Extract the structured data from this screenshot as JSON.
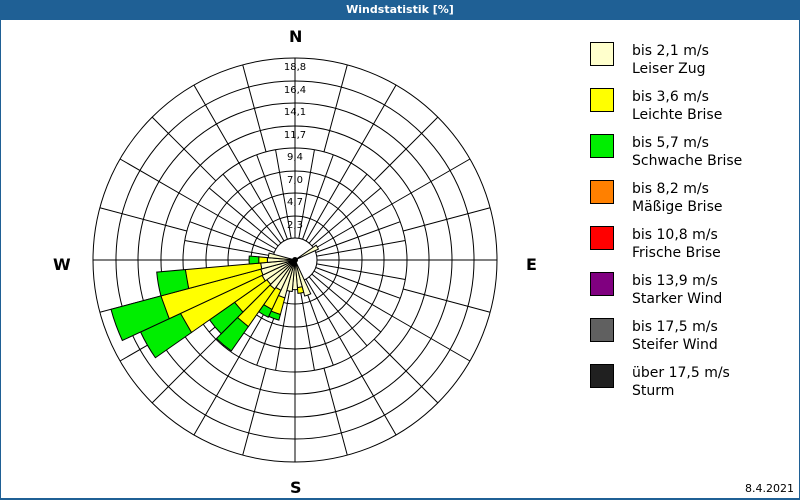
{
  "window": {
    "title": "Windstatistik [%]",
    "date": "8.4.2021"
  },
  "compass": {
    "north": "N",
    "south": "S",
    "east": "E",
    "west": "W"
  },
  "rings": [
    "2,3",
    "4,7",
    "7,0",
    "9,4",
    "11,7",
    "14,1",
    "16,4",
    "18,8"
  ],
  "legend": [
    {
      "range": "bis 2,1 m/s",
      "name": "Leiser Zug",
      "color": "#ffffcc"
    },
    {
      "range": "bis 3,6 m/s",
      "name": "Leichte Brise",
      "color": "#ffff00"
    },
    {
      "range": "bis 5,7 m/s",
      "name": "Schwache Brise",
      "color": "#00ee00"
    },
    {
      "range": "bis 8,2 m/s",
      "name": "Mäßige Brise",
      "color": "#ff8000"
    },
    {
      "range": "bis 10,8 m/s",
      "name": "Frische Brise",
      "color": "#ff0000"
    },
    {
      "range": "bis 13,9 m/s",
      "name": "Starker Wind",
      "color": "#800080"
    },
    {
      "range": "bis 17,5 m/s",
      "name": "Steifer Wind",
      "color": "#606060"
    },
    {
      "range": "über 17,5 m/s",
      "name": "Sturm",
      "color": "#202020"
    }
  ],
  "chart_data": {
    "type": "windrose",
    "title": "Windstatistik [%]",
    "unit": "%",
    "radial_ticks": [
      2.3,
      4.7,
      7.0,
      9.4,
      11.7,
      14.1,
      16.4,
      18.8
    ],
    "rmax": 18.8,
    "sector_width_deg": 10,
    "speed_classes": [
      "bis 2,1 m/s",
      "bis 3,6 m/s",
      "bis 5,7 m/s",
      "bis 8,2 m/s",
      "bis 10,8 m/s",
      "bis 13,9 m/s",
      "bis 17,5 m/s",
      "über 17,5 m/s"
    ],
    "sectors": [
      {
        "dir_deg": 160,
        "cumulative": [
          1.6
        ]
      },
      {
        "dir_deg": 170,
        "cumulative": [
          0.6,
          1.2
        ]
      },
      {
        "dir_deg": 180,
        "cumulative": [
          0.8
        ]
      },
      {
        "dir_deg": 190,
        "cumulative": [
          1.0
        ]
      },
      {
        "dir_deg": 200,
        "cumulative": [
          1.8,
          3.6,
          4.2
        ]
      },
      {
        "dir_deg": 210,
        "cumulative": [
          1.2,
          3.4,
          4.3
        ]
      },
      {
        "dir_deg": 220,
        "cumulative": [
          1.4,
          6.2,
          9.3
        ]
      },
      {
        "dir_deg": 230,
        "cumulative": [
          1.3,
          5.4,
          8.6
        ]
      },
      {
        "dir_deg": 240,
        "cumulative": [
          1.5,
          10.9,
          15.5
        ]
      },
      {
        "dir_deg": 250,
        "cumulative": [
          1.4,
          12.2,
          17.6
        ]
      },
      {
        "dir_deg": 260,
        "cumulative": [
          1.3,
          9.2,
          12.2
        ]
      },
      {
        "dir_deg": 270,
        "cumulative": [
          0.6,
          1.5,
          2.5
        ]
      },
      {
        "dir_deg": 280,
        "cumulative": [
          0.5
        ]
      },
      {
        "dir_deg": 60,
        "cumulative": [
          0.4
        ]
      }
    ],
    "grid": true,
    "legend_position": "right"
  }
}
